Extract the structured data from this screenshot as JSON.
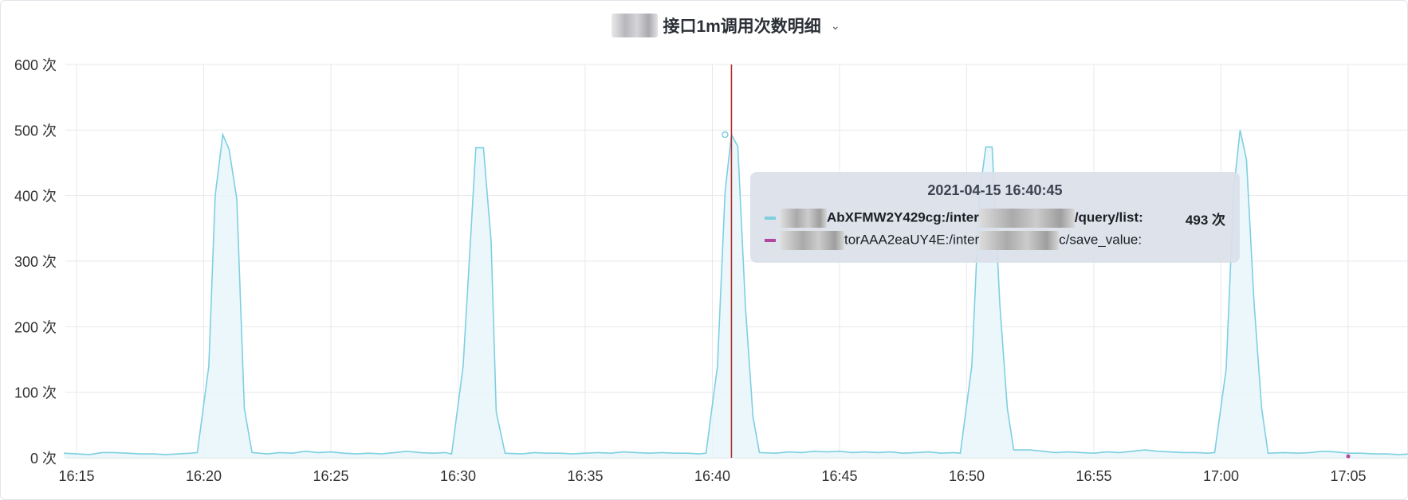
{
  "header": {
    "title": "接口1m调用次数明细"
  },
  "tooltip": {
    "time": "2021-04-15 16:40:45",
    "rows": [
      {
        "key_prefix": "AbXFMW2Y429cg:/inter",
        "key_suffix": "/query/list:",
        "value": "493 次",
        "color": "#7ecfe0"
      },
      {
        "key_prefix": "torAAA2eaUY4E:/inter",
        "key_suffix": "c/save_value:",
        "value": "",
        "color": "#b0489f"
      }
    ]
  },
  "chart_data": {
    "type": "area",
    "title": "接口1m调用次数明细",
    "xlabel": "",
    "ylabel": "",
    "ylim": [
      0,
      600
    ],
    "y_ticks": [
      "0 次",
      "100 次",
      "200 次",
      "300 次",
      "400 次",
      "500 次",
      "600 次"
    ],
    "x_tick_labels": [
      "16:15",
      "16:20",
      "16:25",
      "16:30",
      "16:35",
      "16:40",
      "16:45",
      "16:50",
      "16:55",
      "17:00",
      "17:05"
    ],
    "x_range_minutes": [
      16.7,
      17.8
    ],
    "crosshair_time": "16:40:45",
    "grid": true,
    "series": [
      {
        "values": [
          [
            -0.5,
            7
          ],
          [
            0,
            6
          ],
          [
            0.5,
            5
          ],
          [
            1,
            8
          ],
          [
            1.5,
            8
          ],
          [
            2,
            7
          ],
          [
            2.5,
            6
          ],
          [
            3,
            6
          ],
          [
            3.5,
            5
          ],
          [
            4,
            6
          ],
          [
            4.5,
            7
          ],
          [
            4.75,
            8
          ],
          [
            5.2,
            140
          ],
          [
            5.45,
            400
          ],
          [
            5.75,
            493
          ],
          [
            6,
            470
          ],
          [
            6.3,
            395
          ],
          [
            6.6,
            75
          ],
          [
            6.9,
            8
          ],
          [
            7.5,
            6
          ],
          [
            8,
            8
          ],
          [
            8.5,
            7
          ],
          [
            9,
            10
          ],
          [
            9.5,
            8
          ],
          [
            10,
            9
          ],
          [
            10.5,
            7
          ],
          [
            11,
            6
          ],
          [
            11.5,
            7
          ],
          [
            12,
            6
          ],
          [
            12.5,
            8
          ],
          [
            13,
            10
          ],
          [
            13.5,
            8
          ],
          [
            14,
            7
          ],
          [
            14.5,
            8
          ],
          [
            14.75,
            6
          ],
          [
            15.2,
            140
          ],
          [
            15.5,
            340
          ],
          [
            15.7,
            473
          ],
          [
            16,
            473
          ],
          [
            16.3,
            330
          ],
          [
            16.5,
            70
          ],
          [
            16.85,
            7
          ],
          [
            17.5,
            6
          ],
          [
            18,
            8
          ],
          [
            18.5,
            7
          ],
          [
            19,
            7
          ],
          [
            19.5,
            6
          ],
          [
            20,
            7
          ],
          [
            20.5,
            8
          ],
          [
            21,
            7
          ],
          [
            21.5,
            9
          ],
          [
            22,
            8
          ],
          [
            22.5,
            7
          ],
          [
            23,
            8
          ],
          [
            23.5,
            7
          ],
          [
            24,
            7
          ],
          [
            24.5,
            6
          ],
          [
            24.75,
            7
          ],
          [
            25.2,
            140
          ],
          [
            25.5,
            405
          ],
          [
            25.75,
            493
          ],
          [
            26,
            475
          ],
          [
            26.3,
            230
          ],
          [
            26.6,
            62
          ],
          [
            26.85,
            8
          ],
          [
            27.5,
            7
          ],
          [
            28,
            9
          ],
          [
            28.5,
            8
          ],
          [
            29,
            10
          ],
          [
            29.5,
            9
          ],
          [
            30,
            10
          ],
          [
            30.5,
            8
          ],
          [
            31,
            9
          ],
          [
            31.5,
            8
          ],
          [
            32,
            9
          ],
          [
            32.5,
            7
          ],
          [
            33,
            8
          ],
          [
            33.5,
            9
          ],
          [
            34,
            7
          ],
          [
            34.5,
            8
          ],
          [
            34.75,
            7
          ],
          [
            35.2,
            140
          ],
          [
            35.5,
            400
          ],
          [
            35.75,
            474
          ],
          [
            36,
            474
          ],
          [
            36.3,
            235
          ],
          [
            36.6,
            75
          ],
          [
            36.85,
            12
          ],
          [
            37.5,
            12
          ],
          [
            38,
            10
          ],
          [
            38.5,
            8
          ],
          [
            39,
            9
          ],
          [
            39.5,
            8
          ],
          [
            40,
            7
          ],
          [
            40.5,
            9
          ],
          [
            41,
            8
          ],
          [
            41.5,
            10
          ],
          [
            42,
            12
          ],
          [
            42.5,
            10
          ],
          [
            43,
            9
          ],
          [
            43.5,
            8
          ],
          [
            44,
            8
          ],
          [
            44.5,
            7
          ],
          [
            44.75,
            8
          ],
          [
            45.2,
            135
          ],
          [
            45.5,
            410
          ],
          [
            45.75,
            500
          ],
          [
            46,
            455
          ],
          [
            46.3,
            235
          ],
          [
            46.6,
            75
          ],
          [
            46.85,
            7
          ],
          [
            47.5,
            8
          ],
          [
            48,
            7
          ],
          [
            48.5,
            8
          ],
          [
            49,
            10
          ],
          [
            49.5,
            9
          ],
          [
            50,
            7
          ],
          [
            50.5,
            7
          ],
          [
            51,
            6
          ],
          [
            51.5,
            6
          ],
          [
            52,
            5
          ],
          [
            52.5,
            6
          ],
          [
            53,
            5
          ],
          [
            53.5,
            7
          ],
          [
            54,
            6
          ]
        ],
        "color": "#7ecfe0"
      },
      {
        "values": [
          [
            50,
            1
          ]
        ],
        "color": "#b0489f"
      }
    ]
  }
}
